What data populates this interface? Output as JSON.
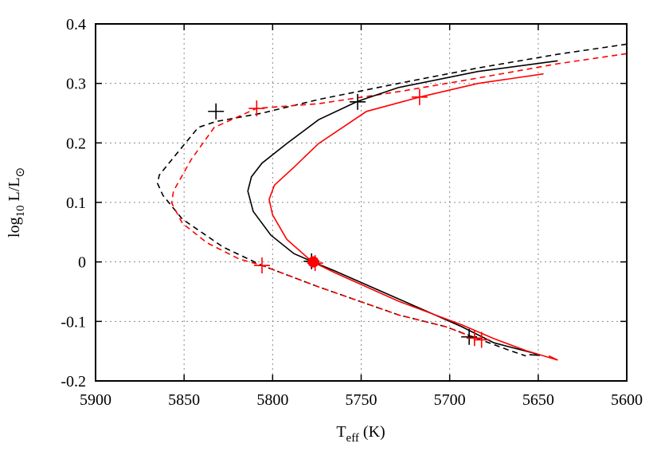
{
  "chart_data": {
    "type": "line",
    "x_label": [
      "T",
      "eff",
      " (K)"
    ],
    "y_label": [
      "log",
      "10",
      " L/L",
      "⊙"
    ],
    "xlim": [
      5900,
      5600
    ],
    "xticks": [
      5900,
      5850,
      5800,
      5750,
      5700,
      5650,
      5600
    ],
    "ylim": [
      -0.2,
      0.4
    ],
    "yticks": [
      -0.2,
      -0.1,
      0,
      0.1,
      0.2,
      0.3,
      0.4
    ],
    "grid": true,
    "series": [
      {
        "color": "#000000",
        "dash": true,
        "x": [
          5600,
          5639,
          5684,
          5729,
          5774,
          5806,
          5832,
          5842,
          5855,
          5864,
          5865,
          5862,
          5851,
          5828,
          5806,
          5774,
          5729,
          5702,
          5684,
          5666,
          5657
        ],
        "values": [
          0.366,
          0.349,
          0.326,
          0.3,
          0.273,
          0.25,
          0.236,
          0.226,
          0.179,
          0.146,
          0.132,
          0.112,
          0.072,
          0.025,
          -0.006,
          -0.042,
          -0.089,
          -0.109,
          -0.129,
          -0.149,
          -0.158
        ]
      },
      {
        "color": "#ff0000",
        "dash": true,
        "x": [
          5600,
          5639,
          5684,
          5729,
          5774,
          5809,
          5833,
          5846,
          5856,
          5857,
          5851,
          5837,
          5819,
          5806,
          5774,
          5729,
          5702,
          5684
        ],
        "values": [
          0.35,
          0.333,
          0.309,
          0.286,
          0.266,
          0.258,
          0.226,
          0.172,
          0.119,
          0.099,
          0.065,
          0.032,
          0.005,
          -0.006,
          -0.042,
          -0.089,
          -0.109,
          -0.13
        ]
      },
      {
        "color": "#000000",
        "dash": false,
        "x": [
          5639,
          5684,
          5729,
          5752,
          5774,
          5792,
          5806,
          5812,
          5814,
          5811,
          5801,
          5788,
          5778,
          5765,
          5729,
          5693,
          5675,
          5653,
          5649,
          5655
        ],
        "values": [
          0.338,
          0.32,
          0.293,
          0.27,
          0.239,
          0.199,
          0.166,
          0.143,
          0.119,
          0.085,
          0.045,
          0.014,
          0.001,
          -0.015,
          -0.062,
          -0.109,
          -0.136,
          -0.153,
          -0.157,
          -0.156
        ]
      },
      {
        "color": "#ff0000",
        "dash": false,
        "x": [
          5647,
          5684,
          5717,
          5747,
          5774,
          5788,
          5799,
          5802,
          5800,
          5792,
          5778,
          5765,
          5729,
          5693,
          5675,
          5657,
          5639,
          5644
        ],
        "values": [
          0.316,
          0.3,
          0.277,
          0.253,
          0.199,
          0.159,
          0.129,
          0.105,
          0.079,
          0.038,
          0.001,
          -0.018,
          -0.066,
          -0.106,
          -0.129,
          -0.149,
          -0.165,
          -0.158
        ]
      },
      {
        "color": "#000000",
        "marker": "plus",
        "x": [
          5832,
          5752,
          5778,
          5689
        ],
        "values": [
          0.253,
          0.269,
          0.001,
          -0.126
        ]
      },
      {
        "color": "#ff0000",
        "marker": "plus",
        "x": [
          5809,
          5717,
          5806,
          5776,
          5686,
          5682
        ],
        "values": [
          0.258,
          0.277,
          -0.006,
          -0.002,
          -0.128,
          -0.131
        ]
      },
      {
        "color": "#ff0000",
        "marker": "circle",
        "x": [
          5777
        ],
        "values": [
          0.0
        ]
      }
    ]
  }
}
